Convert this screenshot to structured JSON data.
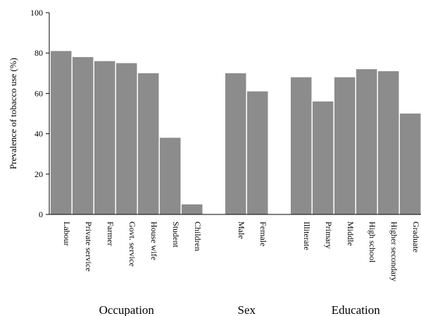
{
  "chart_data": {
    "type": "bar",
    "ylabel": "Prevalence of tobacco use (%)",
    "ylim": [
      0,
      100
    ],
    "yticks": [
      0,
      20,
      40,
      60,
      80,
      100
    ],
    "grid": false,
    "bar_color": "#8c8c8c",
    "groups": [
      {
        "name": "Occupation",
        "categories": [
          "Labour",
          "Private service",
          "Farmer",
          "Govt. service",
          "House wife",
          "Student",
          "Children"
        ],
        "values": [
          81,
          78,
          76,
          75,
          70,
          38,
          5
        ]
      },
      {
        "name": "Sex",
        "categories": [
          "Male",
          "Female"
        ],
        "values": [
          70,
          61
        ]
      },
      {
        "name": "Education",
        "categories": [
          "Illiterate",
          "Primary",
          "Middle",
          "High school",
          "Higher secondary",
          "Graduate"
        ],
        "values": [
          68,
          56,
          68,
          72,
          71,
          50
        ]
      }
    ]
  }
}
